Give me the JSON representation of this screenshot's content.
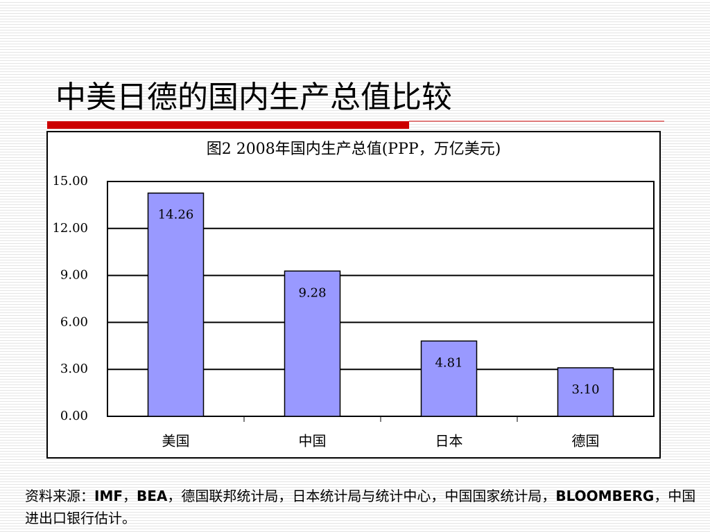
{
  "slide_title": "中美日德的国内生产总值比较",
  "chart_data": {
    "type": "bar",
    "title": "图2 2008年国内生产总值(PPP，万亿美元)",
    "categories": [
      "美国",
      "中国",
      "日本",
      "德国"
    ],
    "values": [
      14.26,
      9.28,
      4.81,
      3.1
    ],
    "value_labels": [
      "14.26",
      "9.28",
      "4.81",
      "3.10"
    ],
    "color": "#9999ff",
    "ylim": [
      0,
      15
    ],
    "yticks": [
      {
        "value": 0,
        "label": "0.00"
      },
      {
        "value": 3,
        "label": "3.00"
      },
      {
        "value": 6,
        "label": "6.00"
      },
      {
        "value": 9,
        "label": "9.00"
      },
      {
        "value": 12,
        "label": "12.00"
      },
      {
        "value": 15,
        "label": "15.00"
      }
    ],
    "grid": true
  },
  "source": [
    "资料来源：",
    "IMF",
    "，",
    "BEA",
    "，德国联邦统计局，日本统计局与统计中心，中国国家统计局，",
    "BLOOMBERG",
    "，中国进出口银行估计。"
  ]
}
